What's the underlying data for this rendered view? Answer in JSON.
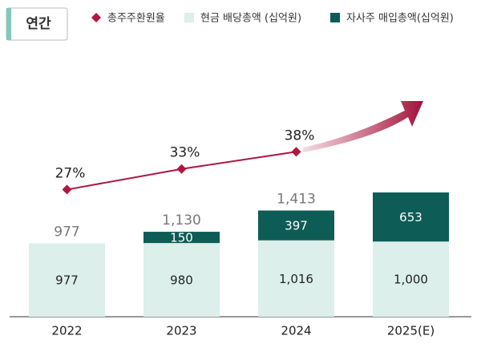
{
  "header": {
    "title": "연간"
  },
  "chart_data": {
    "type": "bar",
    "categories": [
      "2022",
      "2023",
      "2024",
      "2025(E)"
    ],
    "ylim": [
      0,
      3200
    ],
    "y2lim": [
      -10,
      60
    ],
    "series": [
      {
        "name": "현금 배당총액 (십억원)",
        "color": "#dcefea",
        "values": [
          977,
          980,
          1016,
          1000
        ],
        "value_labels": [
          "977",
          "980",
          "1,016",
          "1,000"
        ]
      },
      {
        "name": "자사주 매입총액(십억원)",
        "color": "#0e5c56",
        "values": [
          null,
          150,
          397,
          653
        ]
      },
      {
        "name": "총주주환원율",
        "color": "#b0163f",
        "type": "line",
        "axis": "y2",
        "values": [
          27,
          33,
          38,
          null
        ],
        "value_labels": [
          "27%",
          "33%",
          "38%",
          null
        ]
      }
    ],
    "totals": {
      "values": [
        977,
        1130,
        1413,
        null
      ],
      "value_labels": [
        "977",
        "1,130",
        "1,413",
        null
      ]
    }
  }
}
